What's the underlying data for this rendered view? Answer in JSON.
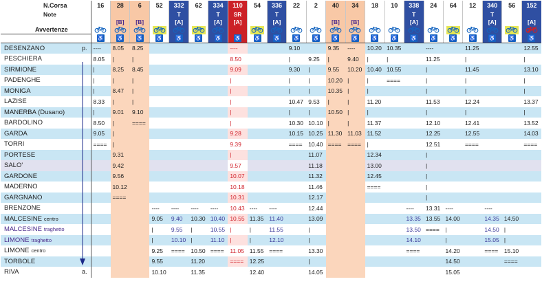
{
  "header": {
    "label_ncorsa": "N.Corsa",
    "label_note": "Note",
    "label_avvertenze": "Avvertenze",
    "runs": [
      {
        "num": "16",
        "note": "",
        "style": "plain",
        "bike": "blue",
        "wc": true
      },
      {
        "num": "28",
        "note": "[B]",
        "style": "orange",
        "bike": "blue",
        "wc": true
      },
      {
        "num": "6",
        "note": "[B]",
        "style": "orange",
        "bike": "blue",
        "wc": true
      },
      {
        "num": "52",
        "note": "",
        "style": "plain",
        "bike": "yellow",
        "wc": true
      },
      {
        "num": "332",
        "note": "T\n[A]",
        "style": "blue",
        "bike": "blue",
        "wc": true
      },
      {
        "num": "62",
        "note": "",
        "style": "plain",
        "bike": "yellow",
        "wc": true
      },
      {
        "num": "334",
        "note": "T\n[A]",
        "style": "blue",
        "bike": "blue",
        "wc": true
      },
      {
        "num": "110",
        "note": "SR\n[A]",
        "style": "red",
        "bike": "red",
        "wc": true
      },
      {
        "num": "54",
        "note": "",
        "style": "plain",
        "bike": "yellow",
        "wc": true
      },
      {
        "num": "336",
        "note": "T\n[A]",
        "style": "blue",
        "bike": "blue",
        "wc": true
      },
      {
        "num": "22",
        "note": "",
        "style": "plain",
        "bike": "blue",
        "wc": true
      },
      {
        "num": "2",
        "note": "",
        "style": "plain",
        "bike": "blue",
        "wc": true
      },
      {
        "num": "40",
        "note": "[B]",
        "style": "orange",
        "bike": "blue",
        "wc": true
      },
      {
        "num": "34",
        "note": "[B]",
        "style": "orange",
        "bike": "blue",
        "wc": true
      },
      {
        "num": "18",
        "note": "",
        "style": "plain",
        "bike": "blue",
        "wc": true
      },
      {
        "num": "10",
        "note": "",
        "style": "plain",
        "bike": "blue",
        "wc": true
      },
      {
        "num": "338",
        "note": "T\n[A]",
        "style": "blue",
        "bike": "blue",
        "wc": true
      },
      {
        "num": "24",
        "note": "",
        "style": "plain",
        "bike": "blue",
        "wc": true
      },
      {
        "num": "64",
        "note": "",
        "style": "plain",
        "bike": "yellow",
        "wc": true
      },
      {
        "num": "12",
        "note": "",
        "style": "plain",
        "bike": "blue",
        "wc": true
      },
      {
        "num": "340",
        "note": "T\n[A]",
        "style": "blue",
        "bike": "blue",
        "wc": true
      },
      {
        "num": "56",
        "note": "",
        "style": "plain",
        "bike": "yellow",
        "wc": true
      },
      {
        "num": "152",
        "note": "[A]",
        "style": "blue",
        "bike": "red",
        "wc": true
      }
    ]
  },
  "rows": [
    {
      "station": "DESENZANO",
      "suffix": "p.",
      "band": "b",
      "t": [
        "----",
        "8.05",
        "8.25",
        "",
        "",
        "",
        "",
        "----",
        "",
        "",
        "9.10",
        "",
        "9.35",
        "----",
        "10.20",
        "10.35",
        "",
        "----",
        "",
        "11.25",
        "",
        "",
        "12.55"
      ]
    },
    {
      "station": "PESCHIERA",
      "suffix": "",
      "band": "w",
      "t": [
        "8.05",
        "|",
        "|",
        "",
        "",
        "",
        "",
        "8.50",
        "",
        "",
        "|",
        "9.25",
        "|",
        "9.40",
        "|",
        "|",
        "",
        "11.25",
        "",
        "|",
        "",
        "",
        "|"
      ]
    },
    {
      "station": "SIRMIONE",
      "suffix": "",
      "band": "b",
      "t": [
        "|",
        "8.25",
        "8.45",
        "",
        "",
        "",
        "",
        "9.09",
        "",
        "",
        "9.30",
        "|",
        "9.55",
        "10.20",
        "10.40",
        "10.55",
        "",
        "|",
        "",
        "11.45",
        "",
        "",
        "13.10"
      ]
    },
    {
      "station": "PADENGHE",
      "suffix": "",
      "band": "w",
      "t": [
        "|",
        "|",
        "|",
        "",
        "",
        "",
        "",
        "|",
        "",
        "",
        "|",
        "|",
        "10.20",
        "|",
        "|",
        "====",
        "",
        "|",
        "",
        "|",
        "",
        "",
        "|"
      ]
    },
    {
      "station": "MONIGA",
      "suffix": "",
      "band": "b",
      "t": [
        "|",
        "8.47",
        "|",
        "",
        "",
        "",
        "",
        "|",
        "",
        "",
        "|",
        "|",
        "10.35",
        "|",
        "|",
        "",
        "",
        "|",
        "",
        "|",
        "",
        "",
        "|"
      ]
    },
    {
      "station": "LAZISE",
      "suffix": "",
      "band": "w",
      "t": [
        "8.33",
        "|",
        "|",
        "",
        "",
        "",
        "",
        "|",
        "",
        "",
        "10.47",
        "9.53",
        "|",
        "|",
        "11.20",
        "",
        "",
        "11.53",
        "",
        "12.24",
        "",
        "",
        "13.37"
      ]
    },
    {
      "station": "MANERBA (Dusano)",
      "suffix": "",
      "band": "b",
      "t": [
        "|",
        "9.01",
        "9.10",
        "",
        "",
        "",
        "",
        "|",
        "",
        "",
        "|",
        "|",
        "10.50",
        "|",
        "|",
        "",
        "",
        "|",
        "",
        "|",
        "",
        "",
        "|"
      ]
    },
    {
      "station": "BARDOLINO",
      "suffix": "",
      "band": "w",
      "t": [
        "8.50",
        "|",
        "====",
        "",
        "",
        "",
        "",
        "|",
        "",
        "",
        "10.30",
        "10.10",
        "|",
        "|",
        "11.37",
        "",
        "",
        "12.10",
        "",
        "12.41",
        "",
        "",
        "13.52"
      ]
    },
    {
      "station": "GARDA",
      "suffix": "",
      "band": "b",
      "t": [
        "9.05",
        "|",
        "",
        "",
        "",
        "",
        "",
        "9.28",
        "",
        "",
        "10.15",
        "10.25",
        "11.30",
        "11.03",
        "11.52",
        "",
        "",
        "12.25",
        "",
        "12.55",
        "",
        "",
        "14.03"
      ]
    },
    {
      "station": "TORRI",
      "suffix": "",
      "band": "w",
      "t": [
        "====",
        "|",
        "",
        "",
        "",
        "",
        "",
        "9.39",
        "",
        "",
        "====",
        "10.40",
        "====",
        "====",
        "|",
        "",
        "",
        "12.51",
        "",
        "====",
        "",
        "",
        "===="
      ]
    },
    {
      "station": "PORTESE",
      "suffix": "",
      "band": "b",
      "t": [
        "",
        "9.31",
        "",
        "",
        "",
        "",
        "",
        "|",
        "",
        "",
        "",
        "11.07",
        "",
        "",
        "12.34",
        "",
        "",
        "|",
        "",
        "",
        "",
        "",
        ""
      ]
    },
    {
      "station": "SALO'",
      "suffix": "",
      "band": "l",
      "t": [
        "",
        "9.42",
        "",
        "",
        "",
        "",
        "",
        "9.57",
        "",
        "",
        "",
        "11.18",
        "",
        "",
        "13.00",
        "",
        "",
        "|",
        "",
        "",
        "",
        "",
        ""
      ]
    },
    {
      "station": "GARDONE",
      "suffix": "",
      "band": "b",
      "t": [
        "",
        "9.56",
        "",
        "",
        "",
        "",
        "",
        "10.07",
        "",
        "",
        "",
        "11.32",
        "",
        "",
        "12.45",
        "",
        "",
        "|",
        "",
        "",
        "",
        "",
        ""
      ]
    },
    {
      "station": "MADERNO",
      "suffix": "",
      "band": "w",
      "t": [
        "",
        "10.12",
        "",
        "",
        "",
        "",
        "",
        "10.18",
        "",
        "",
        "",
        "11.46",
        "",
        "",
        "====",
        "",
        "",
        "|",
        "",
        "",
        "",
        "",
        ""
      ]
    },
    {
      "station": "GARGNANO",
      "suffix": "",
      "band": "b",
      "t": [
        "",
        "====",
        "",
        "",
        "",
        "",
        "",
        "10.31",
        "",
        "",
        "",
        "12.17",
        "",
        "",
        "",
        "",
        "",
        "|",
        "",
        "",
        "",
        "",
        ""
      ]
    },
    {
      "station": "BRENZONE",
      "suffix": "",
      "band": "w",
      "t": [
        "",
        "",
        "",
        "----",
        "----",
        "----",
        "----",
        "10.43",
        "----",
        "----",
        "",
        "12.44",
        "",
        "",
        "",
        "",
        "----",
        "13.31",
        "----",
        "",
        "----",
        "",
        ""
      ]
    },
    {
      "station": "MALCESINE",
      "suffix": "centro",
      "band": "b",
      "t": [
        "",
        "",
        "",
        "9.05",
        "9.40",
        "10.30",
        "10.40",
        "10.55",
        "11.35",
        "11.40",
        "",
        "13.09",
        "",
        "",
        "",
        "",
        "13.35",
        "13.55",
        "14.00",
        "",
        "14.35",
        "14.50",
        ""
      ]
    },
    {
      "station": "MALCESINE",
      "suffix": "traghetto",
      "band": "w",
      "purple": true,
      "t": [
        "",
        "",
        "",
        "|",
        "9.55",
        "|",
        "10.55",
        "|",
        "|",
        "11.55",
        "",
        "|",
        "",
        "",
        "",
        "",
        "13.50",
        "====",
        "|",
        "",
        "14.50",
        "|",
        ""
      ]
    },
    {
      "station": "LIMONE",
      "suffix": "traghetto",
      "band": "b",
      "purple": true,
      "t": [
        "",
        "",
        "",
        "|",
        "10.10",
        "|",
        "11.10",
        "|",
        "|",
        "12.10",
        "",
        "|",
        "",
        "",
        "",
        "",
        "14.10",
        "",
        "|",
        "",
        "15.05",
        "|",
        ""
      ]
    },
    {
      "station": "LIMONE",
      "suffix": "centro",
      "band": "w",
      "t": [
        "",
        "",
        "",
        "9.25",
        "====",
        "10.50",
        "====",
        "11.05",
        "11.55",
        "====",
        "",
        "13.30",
        "",
        "",
        "",
        "",
        "====",
        "",
        "14.20",
        "",
        "====",
        "15.10",
        ""
      ]
    },
    {
      "station": "TORBOLE",
      "suffix": "",
      "band": "b",
      "t": [
        "",
        "",
        "",
        "9.55",
        "",
        "11.20",
        "",
        "====",
        "12.25",
        "",
        "",
        "|",
        "",
        "",
        "",
        "",
        "",
        "",
        "14.50",
        "",
        "",
        "====",
        ""
      ]
    },
    {
      "station": "RIVA",
      "suffix": "a.",
      "band": "w",
      "t": [
        "",
        "",
        "",
        "10.10",
        "",
        "11.35",
        "",
        "",
        "12.40",
        "",
        "",
        "14.05",
        "",
        "",
        "",
        "",
        "",
        "",
        "15.05",
        "",
        "",
        "",
        ""
      ]
    }
  ]
}
